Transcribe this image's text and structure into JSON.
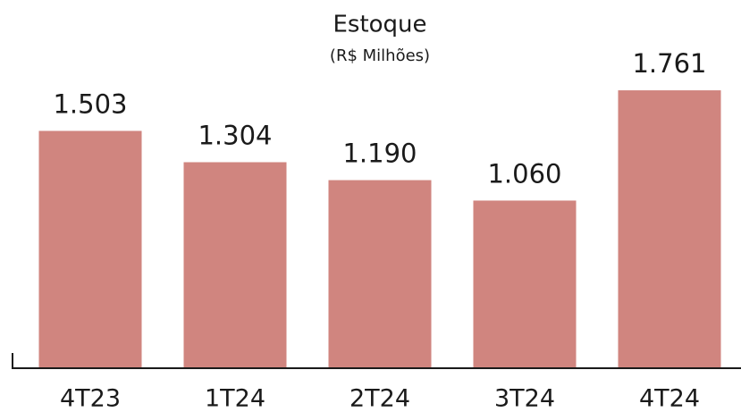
{
  "chart_data": {
    "type": "bar",
    "title": "Estoque",
    "subtitle": "(R$ Milhões)",
    "categories": [
      "4T23",
      "1T24",
      "2T24",
      "3T24",
      "4T24"
    ],
    "values": [
      1503,
      1304,
      1190,
      1060,
      1761
    ],
    "value_labels": [
      "1.503",
      "1.304",
      "1.190",
      "1.060",
      "1.761"
    ],
    "color": "#d0857f",
    "ylim": [
      0,
      2000
    ]
  }
}
